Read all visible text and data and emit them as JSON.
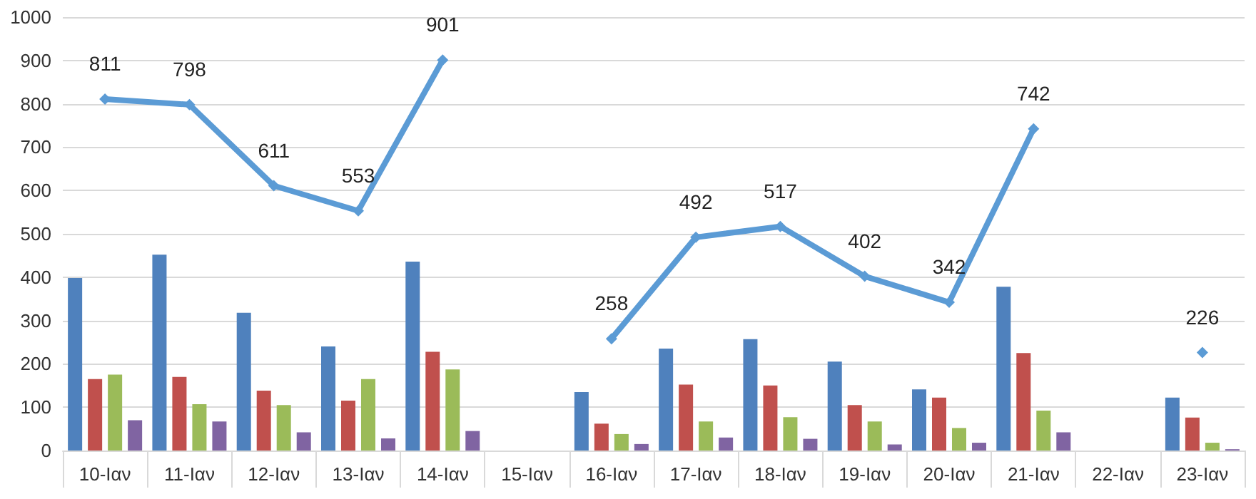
{
  "chart_data": {
    "type": "bar",
    "categories": [
      "10-Ιαν",
      "11-Ιαν",
      "12-Ιαν",
      "13-Ιαν",
      "14-Ιαν",
      "15-Ιαν",
      "16-Ιαν",
      "17-Ιαν",
      "18-Ιαν",
      "19-Ιαν",
      "20-Ιαν",
      "21-Ιαν",
      "22-Ιαν",
      "23-Ιαν"
    ],
    "series": [
      {
        "color": "#4f81bd",
        "values": [
          398,
          452,
          318,
          240,
          436,
          null,
          135,
          235,
          257,
          205,
          141,
          378,
          null,
          122
        ]
      },
      {
        "color": "#c0504d",
        "values": [
          165,
          170,
          138,
          115,
          228,
          null,
          62,
          152,
          150,
          105,
          122,
          225,
          null,
          76
        ]
      },
      {
        "color": "#9bbb59",
        "values": [
          175,
          107,
          105,
          165,
          187,
          null,
          38,
          67,
          77,
          67,
          52,
          92,
          null,
          18
        ]
      },
      {
        "color": "#8064a2",
        "values": [
          70,
          67,
          42,
          28,
          45,
          null,
          15,
          30,
          27,
          14,
          18,
          42,
          null,
          3
        ]
      },
      {
        "type": "line",
        "color": "#5b9bd5",
        "marker": "diamond",
        "values": [
          811,
          798,
          611,
          553,
          901,
          null,
          258,
          492,
          517,
          402,
          342,
          742,
          null,
          226
        ],
        "value_labels": [
          "811",
          "798",
          "611",
          "553",
          "901",
          null,
          "258",
          "492",
          "517",
          "402",
          "342",
          "742",
          null,
          "226"
        ]
      }
    ],
    "ylim": [
      0,
      1000
    ],
    "yticks": [
      0,
      100,
      200,
      300,
      400,
      500,
      600,
      700,
      800,
      900,
      1000
    ],
    "grid": "y"
  }
}
